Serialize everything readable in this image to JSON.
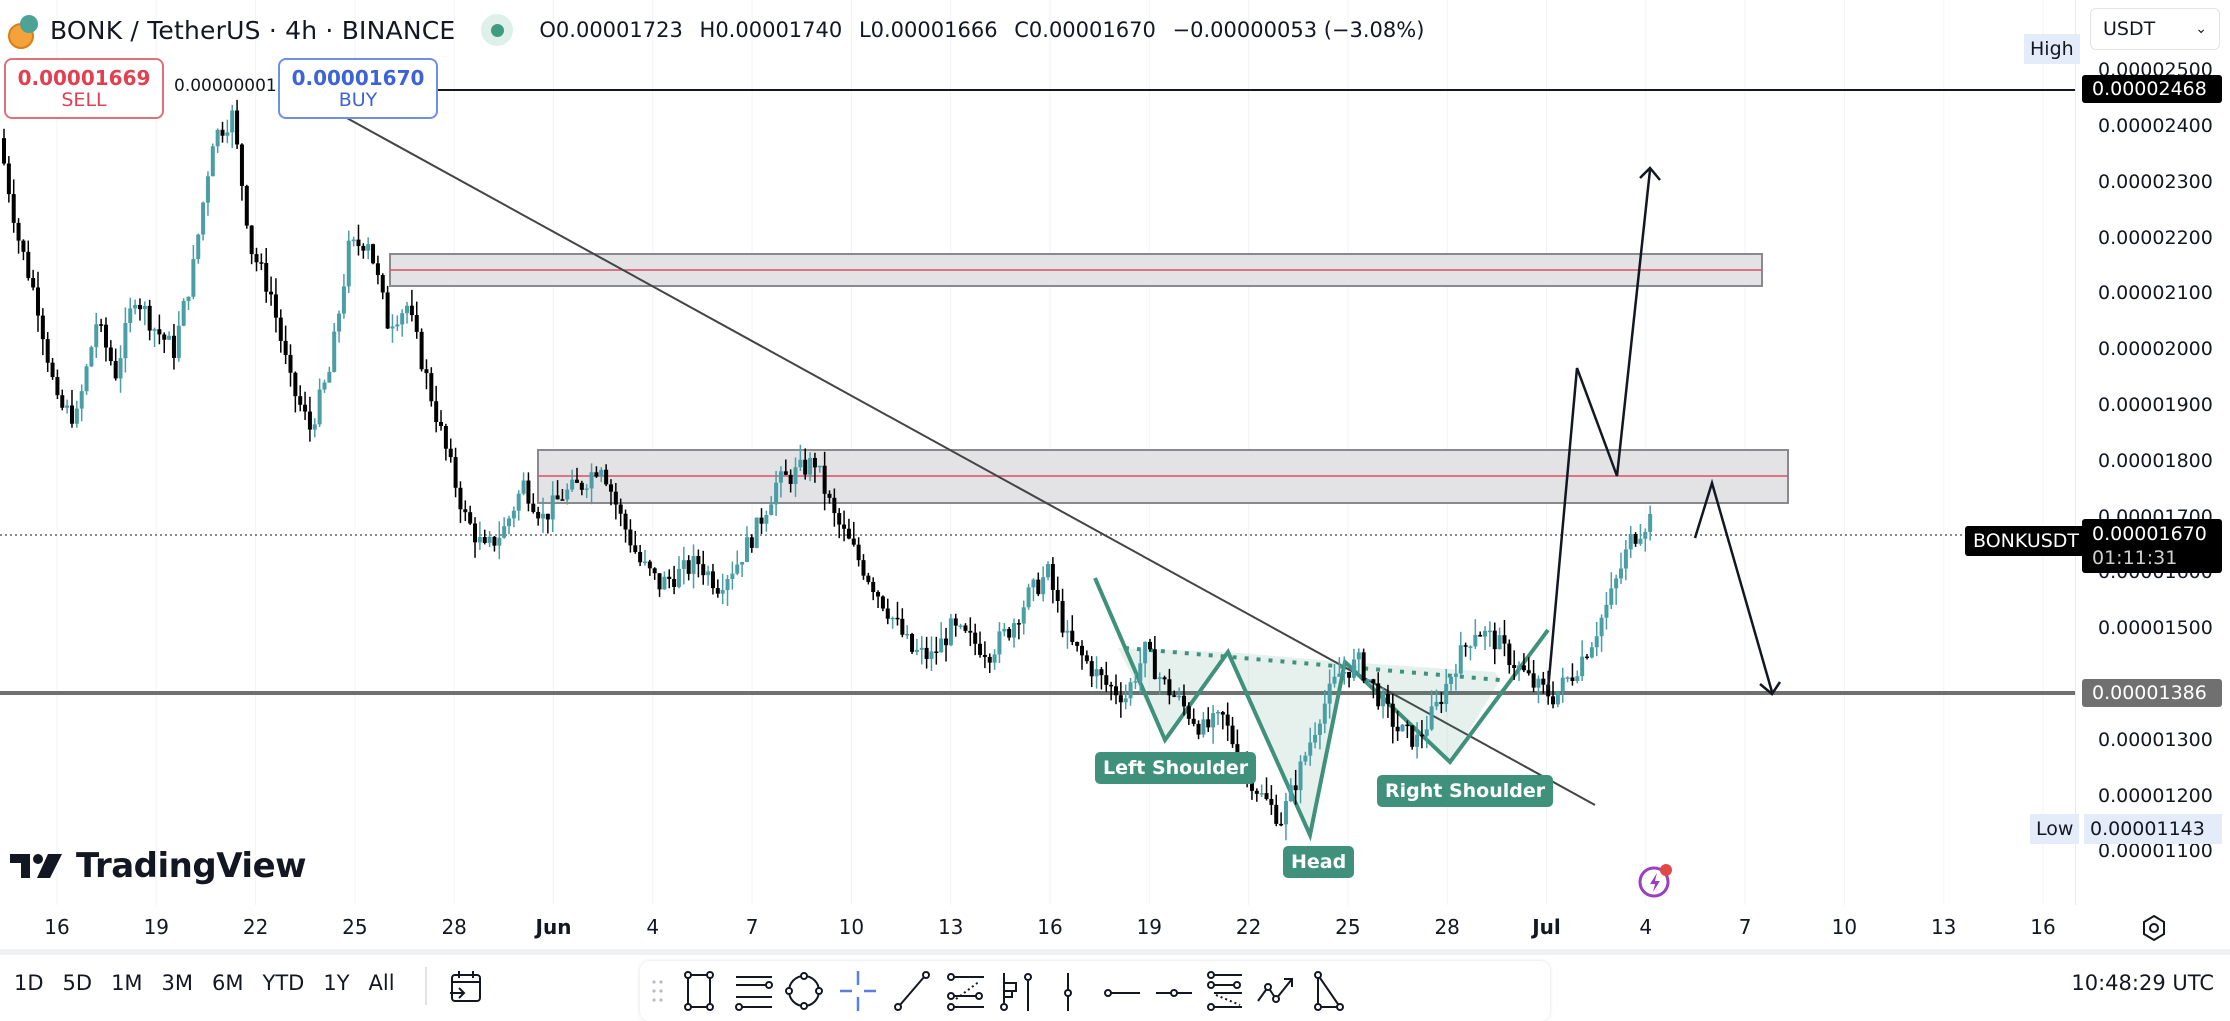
{
  "header": {
    "symbol": "BONK / TetherUS · 4h · BINANCE",
    "ohlc": {
      "open": "O0.00001723",
      "high": "H0.00001740",
      "low": "L0.00001666",
      "close": "C0.00001670",
      "change": "−0.00000053 (−3.08%)"
    },
    "market_status": "open"
  },
  "order_panel": {
    "sell_price": "0.00001669",
    "sell_label": "SELL",
    "spread": "0.00000001",
    "buy_price": "0.00001670",
    "buy_label": "BUY"
  },
  "currency_select": {
    "value": "USDT"
  },
  "price_axis": {
    "ticks": [
      "0.00002500",
      "0.00002400",
      "0.00002300",
      "0.00002200",
      "0.00002100",
      "0.00002000",
      "0.00001900",
      "0.00001800",
      "0.00001700",
      "0.00001600",
      "0.00001500",
      "0.00001300",
      "0.00001200",
      "0.00001100"
    ],
    "high_label": "High",
    "high_value": "0.00002468",
    "low_label": "Low",
    "low_value": "0.00001143",
    "last_symbol": "BONKUSDT",
    "last_price": "0.00001670",
    "countdown": "01:11:31",
    "support_value": "0.00001386"
  },
  "time_axis": {
    "labels": [
      "16",
      "19",
      "22",
      "25",
      "28",
      "Jun",
      "4",
      "7",
      "10",
      "13",
      "16",
      "19",
      "22",
      "25",
      "28",
      "Jul",
      "4",
      "7",
      "10",
      "13",
      "16"
    ]
  },
  "annotations": {
    "left_shoulder": "Left Shoulder",
    "head": "Head",
    "right_shoulder": "Right Shoulder"
  },
  "branding": {
    "logo_text": "TradingView"
  },
  "bottom_bar": {
    "ranges": [
      "1D",
      "5D",
      "1M",
      "3M",
      "6M",
      "YTD",
      "1Y",
      "All"
    ],
    "clock": "10:48:29 UTC",
    "drawing_tools": [
      "rectangle",
      "parallel-channel",
      "ellipse",
      "crosshair",
      "trend-line",
      "fib-retracement",
      "long-position",
      "vertical-line",
      "horizontal-ray",
      "horizontal-line",
      "fib-extension",
      "path",
      "triangle"
    ]
  },
  "colors": {
    "up_candle": "#4a9ea6",
    "down_candle": "#000000",
    "pattern": "#3f917c",
    "zone_fill": "#e3e3e5",
    "zone_mid": "#d9506a",
    "sell": "#e0404f",
    "buy": "#3c63d8"
  },
  "chart_data": {
    "type": "candlestick",
    "title": "BONK / TetherUS · 4h · BINANCE",
    "ylim": [
      1.05e-05,
      2.52e-05
    ],
    "price_levels": {
      "high": 2.468e-05,
      "low": 1.143e-05,
      "last": 1.67e-05,
      "support": 1.386e-05
    },
    "zones": [
      {
        "from": 2.11e-05,
        "to": 2.17e-05,
        "mid": 2.14e-05
      },
      {
        "from": 1.73e-05,
        "to": 1.82e-05,
        "mid": 1.77e-05
      }
    ],
    "path_close": [
      2380,
      2200,
      2080,
      1900,
      1880,
      2050,
      1960,
      2100,
      2040,
      2000,
      2150,
      2380,
      2420,
      2180,
      2100,
      1940,
      1860,
      1960,
      2180,
      2200,
      2050,
      2080,
      1950,
      1820,
      1700,
      1640,
      1680,
      1760,
      1700,
      1740,
      1760,
      1800,
      1700,
      1620,
      1580,
      1600,
      1620,
      1580,
      1620,
      1680,
      1760,
      1780,
      1800,
      1700,
      1640,
      1580,
      1520,
      1460,
      1450,
      1500,
      1480,
      1460,
      1500,
      1560,
      1600,
      1480,
      1440,
      1400,
      1380,
      1460,
      1400,
      1360,
      1320,
      1340,
      1260,
      1200,
      1160,
      1250,
      1350,
      1420,
      1440,
      1380,
      1320,
      1300,
      1360,
      1440,
      1500,
      1480,
      1440,
      1400,
      1380,
      1420,
      1480,
      1560,
      1660,
      1700
    ]
  }
}
